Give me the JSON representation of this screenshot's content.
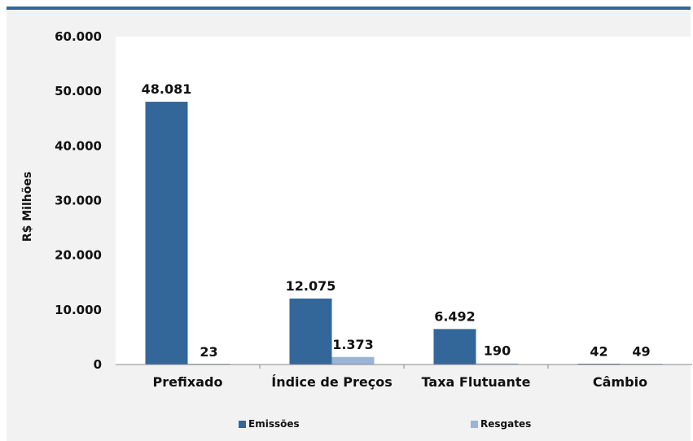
{
  "chart_data": {
    "type": "bar",
    "categories": [
      "Prefixado",
      "Índice de Preços",
      "Taxa Flutuante",
      "Câmbio"
    ],
    "series": [
      {
        "name": "Emissões",
        "values": [
          48081,
          12075,
          6492,
          42
        ],
        "labels": [
          "48.081",
          "12.075",
          "6.492",
          "42"
        ],
        "color": "#336699"
      },
      {
        "name": "Resgates",
        "values": [
          23,
          1373,
          190,
          49
        ],
        "labels": [
          "23",
          "1.373",
          "190",
          "49"
        ],
        "color": "#99b4d6"
      }
    ],
    "ylabel": "R$ Milhões",
    "ylim": [
      0,
      60000
    ],
    "yticks": [
      0,
      10000,
      20000,
      30000,
      40000,
      50000,
      60000
    ],
    "ytick_labels": [
      "0",
      "10.000",
      "20.000",
      "30.000",
      "40.000",
      "50.000",
      "60.000"
    ],
    "grid": false,
    "legend_position": "bottom"
  }
}
